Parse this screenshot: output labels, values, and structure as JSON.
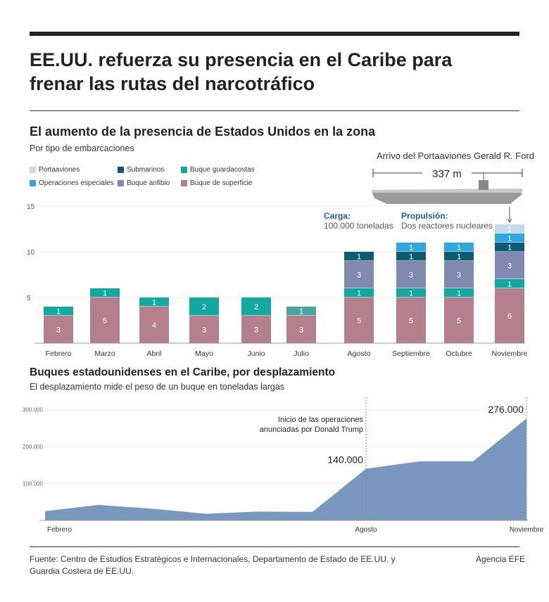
{
  "title": "EE.UU. refuerza su presencia en el Caribe para frenar las rutas del narcotráfico",
  "section1": {
    "title": "El aumento de la presencia de Estados Unidos en la zona",
    "subtitle": "Por tipo de embarcaciones"
  },
  "carrier": {
    "title": "Arrivo del Portaaviones Gerald R. Ford",
    "length": "337 m",
    "cargo_label": "Carga:",
    "cargo_value": "100.000 toneladas",
    "propulsion_label": "Propulsión:",
    "propulsion_value": "Dos reactores nucleares"
  },
  "section2": {
    "title": "Buques estadounidenses en el Caribe, por desplazamiento",
    "subtitle": "El desplazamiento mide el peso de un buque en toneladas largas"
  },
  "footer": {
    "source": "Fuente: Centro de Estudios Estratégicos e Internacionales, Departamento de Estado de EE.UU. y Guardia Costera de EE.UU.",
    "credit": "Agencia EFE"
  },
  "chart_data": [
    {
      "type": "bar",
      "stacked": true,
      "categories": [
        "Febrero",
        "Marzo",
        "Abril",
        "Mayo",
        "Junio",
        "Julio",
        "Agosto",
        "Septiembre",
        "Octubre",
        "Noviembre"
      ],
      "ylim": [
        0,
        15
      ],
      "yticks": [
        5,
        10,
        15
      ],
      "grid": true,
      "legend": "top-left",
      "series": [
        {
          "name": "Buque de superficie",
          "color": "#b5808e",
          "values": [
            3,
            5,
            4,
            3,
            3,
            3,
            5,
            5,
            5,
            6
          ]
        },
        {
          "name": "Buque guardacostas",
          "color": "#14a8a3",
          "values": [
            1,
            1,
            1,
            2,
            2,
            1,
            1,
            1,
            1,
            1
          ]
        },
        {
          "name": "Buque anfibio",
          "color": "#8189b1",
          "values": [
            0,
            0,
            0,
            0,
            0,
            0,
            3,
            3,
            3,
            3
          ]
        },
        {
          "name": "Submarinos",
          "color": "#0d5a72",
          "values": [
            0,
            0,
            0,
            0,
            0,
            0,
            1,
            1,
            1,
            1
          ]
        },
        {
          "name": "Operaciones especiales",
          "color": "#2ea7de",
          "values": [
            0,
            0,
            0,
            0,
            0,
            0,
            0,
            1,
            1,
            1
          ]
        },
        {
          "name": "Portaaviones",
          "color": "#c6d8ec",
          "values": [
            0,
            0,
            0,
            0,
            0,
            0,
            0,
            0,
            0,
            1
          ]
        }
      ],
      "legend_order": [
        "Portaaviones",
        "Submarinos",
        "Buque guardacostas",
        "Operaciones especiales",
        "Buque anfibio",
        "Buque de superficie"
      ]
    },
    {
      "type": "area",
      "x": [
        "Febrero",
        "Marzo",
        "Abril",
        "Mayo",
        "Junio",
        "Julio",
        "Agosto",
        "Septiembre",
        "Octubre",
        "Noviembre"
      ],
      "values": [
        25000,
        42000,
        32000,
        18000,
        24000,
        23000,
        140000,
        160000,
        160000,
        276000
      ],
      "xtick_labels": [
        "Febrero",
        "Agosto",
        "Noviembre"
      ],
      "ylim": [
        0,
        300000
      ],
      "yticks": [
        "100.000",
        "200.000",
        "300.000"
      ],
      "grid": true,
      "color": "#7a97bf",
      "annotations": [
        {
          "x": "Agosto",
          "text": "Inicio de las operaciones anunciadas por Donald Trump",
          "value_label": "140.000"
        },
        {
          "x": "Noviembre",
          "value_label": "276.000"
        }
      ]
    }
  ]
}
